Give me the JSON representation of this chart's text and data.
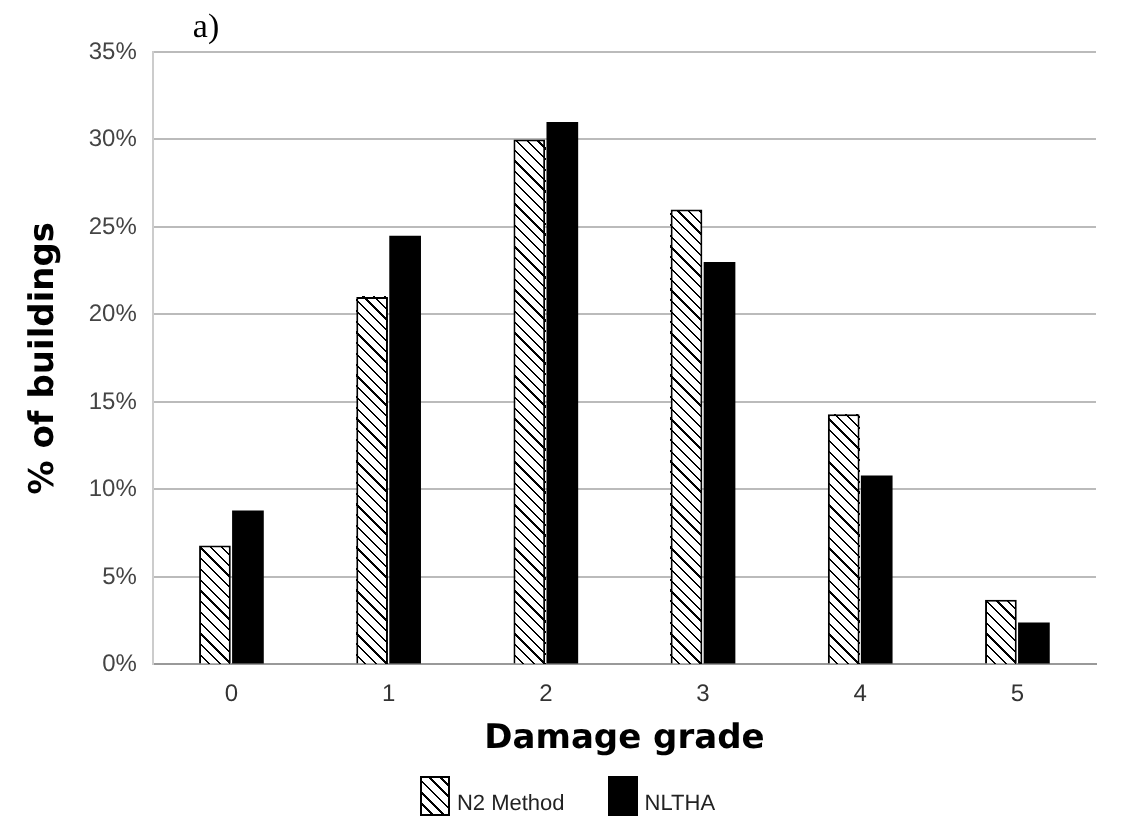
{
  "chart_data": {
    "type": "bar",
    "title": "a)",
    "xlabel": "Damage grade",
    "ylabel": "% of buildings",
    "categories": [
      "0",
      "1",
      "2",
      "3",
      "4",
      "5"
    ],
    "series": [
      {
        "name": "N2 Method",
        "color": "#ffffff",
        "values": [
          6.8,
          21,
          30,
          26,
          14.3,
          3.7
        ]
      },
      {
        "name": "NLTHA",
        "color": "#000000",
        "values": [
          8.8,
          24.5,
          31,
          23,
          10.8,
          2.4
        ]
      }
    ],
    "ylim": [
      0,
      35
    ],
    "yticks": [
      {
        "value": 0,
        "label": "0%"
      },
      {
        "value": 5,
        "label": "5%"
      },
      {
        "value": 10,
        "label": "10%"
      },
      {
        "value": 15,
        "label": "15%"
      },
      {
        "value": 20,
        "label": "20%"
      },
      {
        "value": 25,
        "label": "25%"
      },
      {
        "value": 30,
        "label": "30%"
      },
      {
        "value": 35,
        "label": "35%"
      }
    ],
    "grid": "y",
    "legend": "bottom"
  }
}
